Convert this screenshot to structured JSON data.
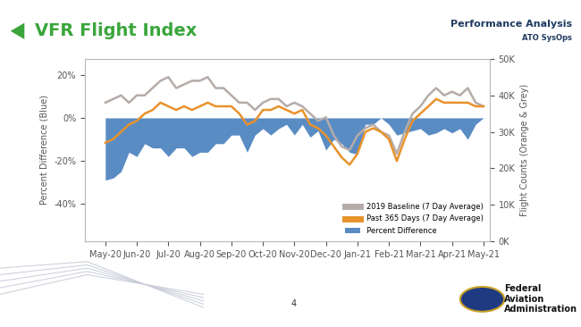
{
  "chart_data": {
    "type": "line",
    "title": "VFR Flight Index",
    "y_label": "Percent Difference (Blue)",
    "y2_label": "Flight Counts (Orange & Grey)",
    "annotations": [
      "Performance Analysis",
      "ATO SysOps",
      "4",
      "Federal Aviation Administration"
    ],
    "x": [
      0.0,
      0.25,
      0.5,
      0.75,
      1.0,
      1.25,
      1.5,
      1.75,
      2.0,
      2.25,
      2.5,
      2.75,
      3.0,
      3.25,
      3.5,
      3.75,
      4.0,
      4.25,
      4.5,
      4.75,
      5.0,
      5.25,
      5.5,
      5.75,
      6.0,
      6.25,
      6.5,
      6.75,
      7.0,
      7.25,
      7.5,
      7.75,
      8.0,
      8.25,
      8.5,
      8.75,
      9.0,
      9.25,
      9.5,
      9.75,
      10.0,
      10.25,
      10.5,
      10.75,
      11.0,
      11.25,
      11.5,
      11.75,
      12.0
    ],
    "xlim": [
      -0.65,
      12.2
    ],
    "xticks": [
      {
        "value": 0,
        "label": "May-20"
      },
      {
        "value": 1,
        "label": "Jun-20"
      },
      {
        "value": 2,
        "label": "Jul-20"
      },
      {
        "value": 3,
        "label": "Aug-20"
      },
      {
        "value": 4,
        "label": "Sep-20"
      },
      {
        "value": 5,
        "label": "Oct-20"
      },
      {
        "value": 6,
        "label": "Nov-20"
      },
      {
        "value": 7,
        "label": "Dec-20"
      },
      {
        "value": 8,
        "label": "Jan-21"
      },
      {
        "value": 9,
        "label": "Feb-21"
      },
      {
        "value": 10,
        "label": "Mar-21"
      },
      {
        "value": 11,
        "label": "Apr-21"
      },
      {
        "value": 12,
        "label": "May-21"
      }
    ],
    "ylim": [
      -57.5,
      27.5
    ],
    "yticks": [
      {
        "value": -40,
        "label": "-40%"
      },
      {
        "value": -20,
        "label": "-20%"
      },
      {
        "value": 0,
        "label": "0%"
      },
      {
        "value": 20,
        "label": "20%"
      }
    ],
    "y2lim": [
      0,
      50000
    ],
    "y2ticks": [
      {
        "value": 0,
        "label": "0K"
      },
      {
        "value": 10000,
        "label": "10K"
      },
      {
        "value": 20000,
        "label": "20K"
      },
      {
        "value": 30000,
        "label": "30K"
      },
      {
        "value": 40000,
        "label": "40K"
      },
      {
        "value": 50000,
        "label": "50K"
      }
    ],
    "grid": false,
    "legend": "lower right",
    "series": [
      {
        "name": "2019 Baseline (7 Day Average)",
        "type": "line",
        "axis": "y2",
        "color": "#b5aca9",
        "values": [
          38000,
          39000,
          40000,
          38000,
          40000,
          40000,
          42000,
          44000,
          45000,
          42000,
          43000,
          44000,
          44000,
          45000,
          42000,
          42000,
          40000,
          38000,
          38000,
          36000,
          38000,
          39000,
          39000,
          37000,
          38000,
          37000,
          35000,
          33000,
          34000,
          29000,
          26000,
          25000,
          29000,
          31000,
          32000,
          30000,
          29000,
          24000,
          30000,
          35000,
          37000,
          40000,
          42000,
          40000,
          41000,
          40000,
          42000,
          38000,
          37000
        ]
      },
      {
        "name": "Past 365 Days (7 Day Average)",
        "type": "line",
        "axis": "y2",
        "color": "#e8922c",
        "values": [
          27000,
          28000,
          30000,
          32000,
          33000,
          35000,
          36000,
          38000,
          37000,
          36000,
          37000,
          36000,
          37000,
          38000,
          37000,
          37000,
          37000,
          35000,
          32000,
          33000,
          36000,
          36000,
          37000,
          36000,
          35000,
          36000,
          32000,
          31000,
          29000,
          26000,
          23000,
          21000,
          24000,
          30000,
          31000,
          30000,
          28000,
          22000,
          28000,
          33000,
          35000,
          37000,
          39000,
          38000,
          38000,
          38000,
          38000,
          37000,
          37000
        ]
      },
      {
        "name": "Percent Difference",
        "type": "area",
        "axis": "y",
        "color": "#5a8cc4",
        "values": [
          -29,
          -28,
          -25,
          -16,
          -18,
          -12,
          -14,
          -14,
          -18,
          -14,
          -14,
          -18,
          -16,
          -16,
          -12,
          -12,
          -8,
          -8,
          -16,
          -8,
          -5,
          -8,
          -5,
          -3,
          -8,
          -3,
          -9,
          -6,
          -15,
          -10,
          -12,
          -16,
          -17,
          -3,
          -3,
          0,
          -3,
          -8,
          -7,
          -6,
          -5,
          -8,
          -7,
          -5,
          -7,
          -5,
          -10,
          -3,
          0
        ]
      }
    ]
  }
}
